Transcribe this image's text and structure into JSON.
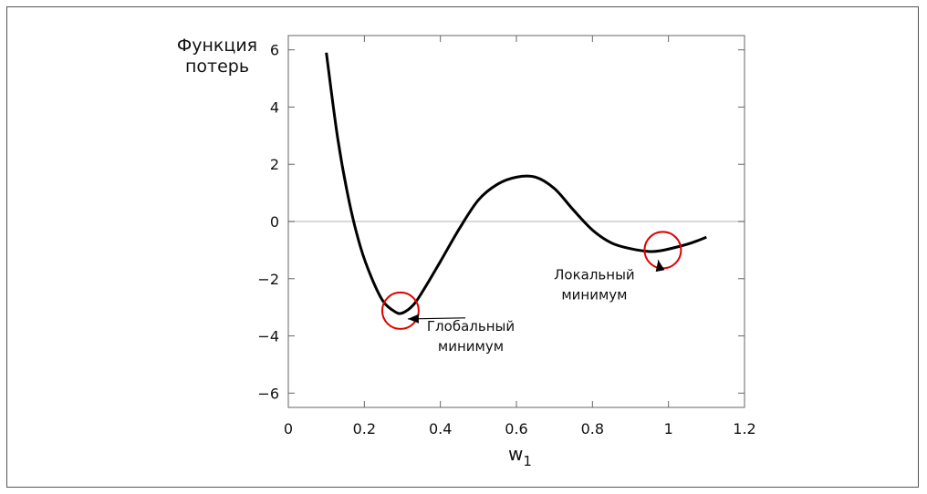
{
  "chart_data": {
    "type": "line",
    "title": "",
    "ylabel_lines": [
      "Функция",
      "потерь"
    ],
    "xlabel": "w",
    "xlabel_subscript": "1",
    "xlim": [
      0,
      1.2
    ],
    "ylim": [
      -6.5,
      6.5
    ],
    "xticks": [
      0,
      0.2,
      0.4,
      0.6,
      0.8,
      1,
      1.2
    ],
    "xtick_labels": [
      "0",
      "0.2",
      "0.4",
      "0.6",
      "0.8",
      "1",
      "1.2"
    ],
    "yticks": [
      6,
      4,
      2,
      0,
      -2,
      -4,
      -6
    ],
    "ytick_labels": [
      "6",
      "4",
      "2",
      "0",
      "−2",
      "−4",
      "−6"
    ],
    "zero_line": true,
    "series": [
      {
        "x": [
          0.1,
          0.13,
          0.16,
          0.19,
          0.22,
          0.25,
          0.28,
          0.3,
          0.33,
          0.36,
          0.4,
          0.45,
          0.5,
          0.55,
          0.6,
          0.65,
          0.7,
          0.75,
          0.8,
          0.85,
          0.9,
          0.95,
          0.98,
          1.02,
          1.06,
          1.1
        ],
        "y": [
          5.9,
          2.9,
          0.7,
          -0.9,
          -2.0,
          -2.8,
          -3.15,
          -3.2,
          -2.9,
          -2.3,
          -1.4,
          -0.25,
          0.75,
          1.3,
          1.55,
          1.55,
          1.15,
          0.4,
          -0.3,
          -0.75,
          -0.95,
          -1.05,
          -1.02,
          -0.9,
          -0.75,
          -0.55
        ]
      }
    ],
    "colors": {
      "curve": "#000000",
      "circle": "#e00000",
      "zero_line": "#cccccc",
      "axes": "#666666"
    },
    "annotations": [
      {
        "lines": [
          "Глобальный",
          "минимум"
        ],
        "point": [
          0.295,
          -3.12
        ],
        "text_at": [
          0.48,
          -4.2
        ]
      },
      {
        "lines": [
          "Локальный",
          "минимум"
        ],
        "point": [
          0.985,
          -1.0
        ],
        "text_at": [
          0.805,
          -2.4
        ]
      }
    ]
  }
}
